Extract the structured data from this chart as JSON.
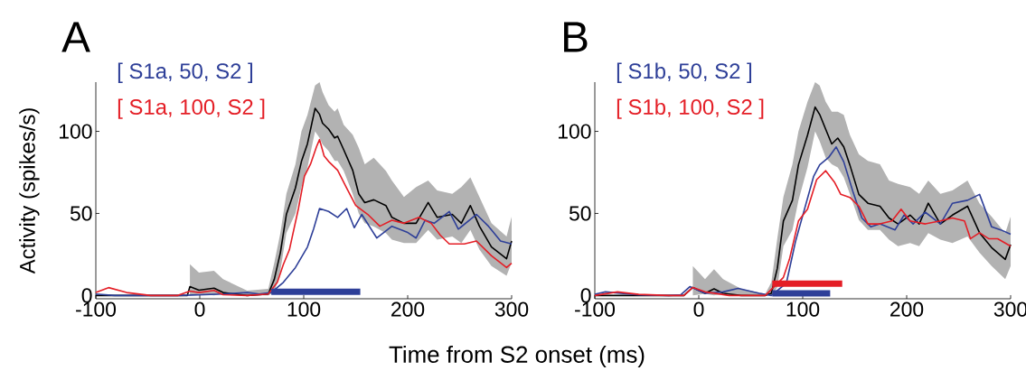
{
  "chart_data": [
    {
      "type": "line",
      "title": "A",
      "xlabel": "Time from S2 onset (ms)",
      "ylabel": "Activity (spikes/s)",
      "xlim": [
        -100,
        300
      ],
      "ylim": [
        -2,
        130
      ],
      "xticks": [
        -100,
        0,
        100,
        200,
        300
      ],
      "yticks": [
        0,
        50,
        100
      ],
      "grid": false,
      "legend": "top left",
      "series": [
        {
          "color": "#000000",
          "x": [
            -100,
            -12,
            -9.5,
            -0.8,
            13.7,
            22.4,
            45.6,
            65.9,
            71.7,
            77.5,
            83.3,
            92.0,
            97.8,
            103.6,
            110.9,
            115.2,
            118.1,
            123.9,
            129.7,
            132.6,
            138.4,
            147.1,
            152.9,
            158.7,
            167.4,
            179.0,
            184.8,
            196.4,
            208.1,
            219.7,
            228.4,
            242.9,
            251.6,
            260.3,
            269.0,
            280.6,
            295.1,
            300
          ],
          "values": [
            0,
            0,
            5.4,
            3.2,
            4.5,
            1.8,
            0,
            0.9,
            9.9,
            26,
            49.4,
            65.5,
            81.7,
            92.5,
            114,
            110.4,
            105,
            101.4,
            96,
            97,
            88.9,
            76.3,
            61.9,
            56.6,
            58.3,
            54.8,
            47.6,
            44,
            44,
            56.6,
            47.6,
            49.4,
            44,
            54.8,
            42.2,
            29.6,
            22.4,
            33.2
          ],
          "lower": [
            null,
            null,
            0,
            1,
            0,
            1,
            0,
            0,
            2,
            15,
            38,
            50,
            66,
            78,
            100,
            96,
            92,
            88,
            82,
            82,
            76,
            62,
            50,
            44,
            42,
            38,
            34,
            32,
            32,
            40,
            34,
            36,
            32,
            40,
            28,
            18,
            12,
            20
          ],
          "upper": [
            null,
            null,
            19,
            14,
            15,
            10,
            3,
            4,
            20,
            38,
            62,
            80,
            100,
            110,
            128,
            130,
            124,
            116,
            112,
            114,
            104,
            98,
            90,
            80,
            84,
            76,
            70,
            60,
            66,
            70,
            64,
            62,
            66,
            72,
            60,
            44,
            36,
            48
          ]
        },
        {
          "name": "[ S1a, 50, S2 ]",
          "color": "#2e3f98",
          "x": [
            -100,
            -82,
            -47.2,
            -21.1,
            22.4,
            45.6,
            57.2,
            68.8,
            80.4,
            92.0,
            103.6,
            109.4,
            115.2,
            123.9,
            132.6,
            141.3,
            148.6,
            155.8,
            170.3,
            184.8,
            199.4,
            208.1,
            216.7,
            225.5,
            240.0,
            248.7,
            266.1,
            277.7,
            289.3,
            300
          ],
          "values": [
            0.9,
            0,
            0,
            0,
            0.9,
            1.8,
            0.9,
            1.8,
            8,
            17,
            29.6,
            40.4,
            53,
            51.2,
            47.6,
            53,
            41.3,
            49.4,
            35,
            42.2,
            38.6,
            35,
            45.8,
            44,
            51.2,
            40.4,
            49.4,
            42.2,
            33.2,
            31.4
          ]
        },
        {
          "name": "[ S1a, 100, S2 ]",
          "color": "#e41e26",
          "x": [
            -100,
            -87.8,
            -70.4,
            -47.2,
            -21.1,
            -9.5,
            -0.8,
            13.7,
            22.4,
            45.6,
            65.9,
            74.6,
            80.4,
            86.2,
            94.9,
            100.7,
            106.5,
            112.3,
            115.2,
            119.6,
            123.9,
            132.6,
            141.3,
            150.0,
            161.6,
            173.2,
            184.8,
            196.4,
            210.9,
            222.6,
            231.3,
            240.0,
            254.5,
            266.1,
            280.6,
            295.1,
            300
          ],
          "values": [
            1.8,
            4.8,
            1.8,
            0,
            0,
            2.7,
            1.8,
            3.1,
            0.5,
            0,
            0.9,
            8,
            18.9,
            27.8,
            53,
            72.7,
            80,
            90.7,
            95,
            85,
            81.7,
            76.3,
            65.5,
            54.8,
            49.4,
            42.2,
            45.8,
            44,
            47.6,
            44,
            36.8,
            31.4,
            31.4,
            33.2,
            24.2,
            17,
            19.7
          ]
        },
        {
          "color": "#2e3f98",
          "x": [
            68.8,
            154.4
          ],
          "values": [
            2.3,
            2.3
          ]
        }
      ]
    },
    {
      "type": "line",
      "title": "B",
      "xlim": [
        -100,
        300
      ],
      "ylim": [
        -2,
        130
      ],
      "xticks": [
        -100,
        0,
        100,
        200,
        300
      ],
      "yticks": [
        0,
        50,
        100
      ],
      "grid": false,
      "legend": "top left",
      "series": [
        {
          "color": "#000000",
          "x": [
            -100,
            -14.4,
            -5.7,
            6.0,
            14.7,
            23.4,
            40.8,
            64.0,
            69.8,
            75.6,
            81.4,
            90.1,
            95.9,
            104.6,
            111.9,
            116.3,
            122.1,
            127.9,
            133.7,
            139.5,
            145.3,
            154.0,
            162.7,
            174.3,
            183.0,
            191.7,
            203.3,
            212.0,
            220.8,
            232.4,
            244.0,
            258.5,
            270.1,
            281.7,
            294.8,
            300
          ],
          "values": [
            0,
            0,
            4.9,
            1.3,
            4,
            1.3,
            0,
            0,
            1.3,
            16.6,
            45.4,
            58,
            79.6,
            97.7,
            114.8,
            110.3,
            101.3,
            92.3,
            95.9,
            90.5,
            79.6,
            61.6,
            56.2,
            54.4,
            47.2,
            43.6,
            49,
            43.6,
            56.2,
            43.6,
            49,
            54.4,
            38.2,
            29.2,
            22,
            31
          ],
          "lower": [
            null,
            null,
            0,
            1,
            0,
            1,
            0,
            1,
            0,
            5,
            30,
            40,
            58,
            78,
            100,
            94,
            84,
            80,
            78,
            72,
            62,
            46,
            40,
            40,
            34,
            30,
            32,
            30,
            38,
            34,
            32,
            36,
            26,
            18,
            10,
            18
          ],
          "upper": [
            null,
            null,
            18,
            10,
            16,
            10,
            4,
            1,
            8,
            35,
            60,
            80,
            100,
            118,
            130,
            128,
            118,
            112,
            112,
            110,
            98,
            86,
            82,
            80,
            70,
            68,
            66,
            62,
            70,
            62,
            64,
            70,
            56,
            48,
            38,
            48
          ]
        },
        {
          "name": "[ S1b, 50, S2 ]",
          "color": "#2e3f98",
          "x": [
            -100,
            -89.8,
            -57.9,
            -28.9,
            -17.3,
            -8.6,
            6.0,
            23.4,
            37.9,
            58.2,
            69.8,
            84.3,
            93.0,
            101.7,
            110.4,
            116.3,
            124.9,
            132.2,
            139.5,
            148.2,
            156.9,
            165.6,
            174.3,
            188.8,
            197.5,
            206.2,
            217.8,
            232.4,
            244.0,
            258.5,
            270.1,
            281.7,
            290.4,
            300
          ],
          "values": [
            0.7,
            2.2,
            0.4,
            0,
            0.4,
            5.4,
            1.3,
            2.2,
            4.3,
            1.3,
            0,
            7.6,
            32.8,
            52.6,
            72.4,
            79.6,
            84.1,
            90.5,
            81.4,
            63.4,
            47.2,
            41.8,
            43.6,
            40,
            49,
            43.6,
            50.8,
            43.6,
            56.2,
            58,
            61.6,
            41.8,
            40,
            37.3
          ]
        },
        {
          "name": "[ S1b, 100, S2 ]",
          "color": "#e41e26",
          "x": [
            -100,
            -78.2,
            -57.9,
            -28.9,
            -14.4,
            -5.7,
            6.0,
            29.2,
            46.6,
            64.0,
            75.6,
            81.4,
            87.2,
            95.9,
            104.6,
            113.4,
            122.1,
            130.8,
            136.6,
            145.3,
            154.0,
            162.7,
            174.3,
            185.9,
            194.6,
            203.3,
            217.9,
            232.4,
            244.0,
            255.6,
            261.4,
            270.1,
            278.8,
            287.5,
            300
          ],
          "values": [
            0,
            2.2,
            0.7,
            0,
            0,
            4.9,
            2.2,
            0,
            0,
            0,
            null,
            11,
            22,
            45.4,
            52.6,
            70.6,
            76,
            68.8,
            61.6,
            59.8,
            54.4,
            43.6,
            43.6,
            45.4,
            52.6,
            45.4,
            43.6,
            45.4,
            47.2,
            45.4,
            34.6,
            38.2,
            34.6,
            34.6,
            30
          ]
        },
        {
          "color": "#e41e26",
          "x": [
            70.7,
            138.0
          ],
          "values": [
            7.2,
            7.2
          ]
        },
        {
          "color": "#2e3f98",
          "x": [
            70.7,
            126.4
          ],
          "values": [
            1.3,
            1.3
          ]
        }
      ]
    }
  ]
}
